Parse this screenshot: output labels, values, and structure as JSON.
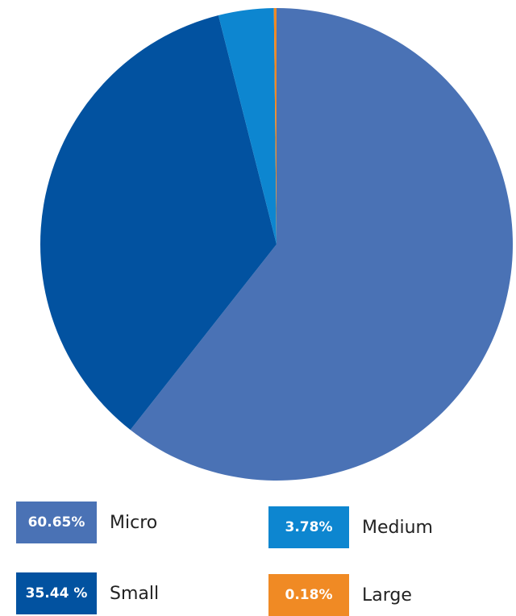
{
  "chart_data": {
    "type": "pie",
    "title": "",
    "slices": [
      {
        "name": "Micro",
        "value": 60.65,
        "value_label": "60.65%",
        "color": "#4A72B5"
      },
      {
        "name": "Small",
        "value": 35.44,
        "value_label": "35.44 %",
        "color": "#0252A0"
      },
      {
        "name": "Medium",
        "value": 3.78,
        "value_label": "3.78%",
        "color": "#0D86D0"
      },
      {
        "name": "Large",
        "value": 0.18,
        "value_label": "0.18%",
        "color": "#F08A24"
      }
    ],
    "start_direction": "top",
    "direction": "clockwise"
  }
}
